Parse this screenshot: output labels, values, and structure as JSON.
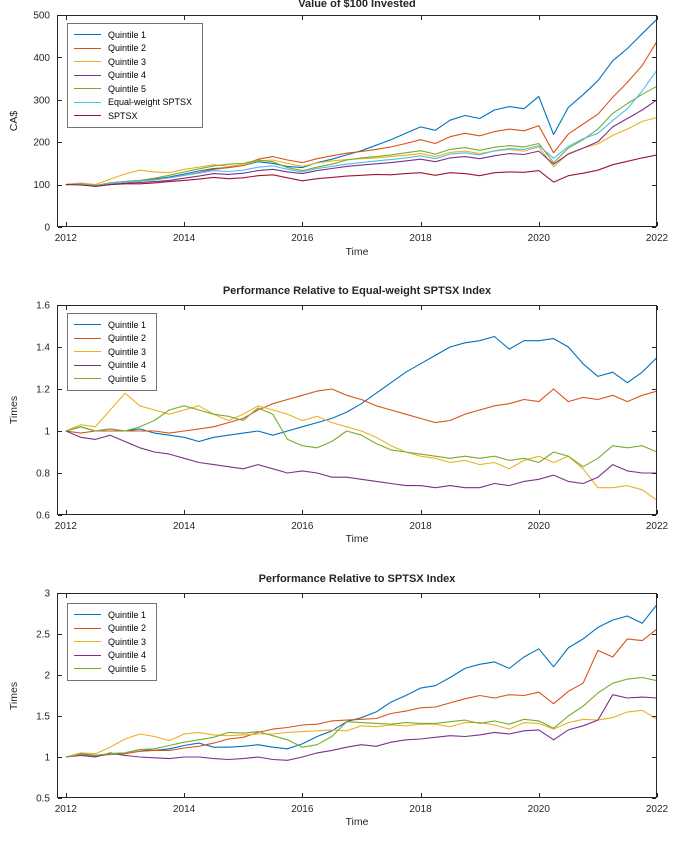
{
  "figure": {
    "background": "#ffffff"
  },
  "chart_data": [
    {
      "type": "line",
      "title": "Value of $100 Invested",
      "xlabel": "Time",
      "ylabel": "CA$",
      "xlim": [
        2011.85,
        2022
      ],
      "ylim": [
        0,
        500
      ],
      "xticks": [
        2012,
        2014,
        2016,
        2018,
        2020,
        2022
      ],
      "yticks": [
        0,
        100,
        200,
        300,
        400,
        500
      ],
      "grid": false,
      "legend_position": "top-left",
      "x": [
        2012,
        2012.25,
        2012.5,
        2012.75,
        2013,
        2013.25,
        2013.5,
        2013.75,
        2014,
        2014.25,
        2014.5,
        2014.75,
        2015,
        2015.25,
        2015.5,
        2015.75,
        2016,
        2016.25,
        2016.5,
        2016.75,
        2017,
        2017.25,
        2017.5,
        2017.75,
        2018,
        2018.25,
        2018.5,
        2018.75,
        2019,
        2019.25,
        2019.5,
        2019.75,
        2020,
        2020.25,
        2020.5,
        2020.75,
        2021,
        2021.25,
        2021.5,
        2021.75,
        2022
      ],
      "series": [
        {
          "name": "Quintile 1",
          "color": "#0072BD",
          "values": [
            100,
            103,
            97,
            104,
            107,
            110,
            113,
            118,
            125,
            132,
            138,
            140,
            145,
            154,
            150,
            143,
            140,
            152,
            160,
            170,
            180,
            193,
            206,
            221,
            236,
            228,
            252,
            263,
            256,
            276,
            284,
            279,
            308,
            218,
            282,
            312,
            345,
            392,
            421,
            456,
            490
          ]
        },
        {
          "name": "Quintile 2",
          "color": "#D95319",
          "values": [
            100,
            102,
            97,
            103,
            106,
            108,
            112,
            116,
            122,
            128,
            136,
            140,
            145,
            160,
            166,
            158,
            152,
            161,
            168,
            174,
            178,
            183,
            189,
            197,
            206,
            197,
            213,
            221,
            215,
            225,
            231,
            227,
            239,
            175,
            219,
            243,
            266,
            306,
            341,
            381,
            438
          ]
        },
        {
          "name": "Quintile 3",
          "color": "#EDB120",
          "values": [
            100,
            104,
            100,
            113,
            125,
            134,
            130,
            128,
            136,
            141,
            147,
            143,
            147,
            156,
            158,
            150,
            143,
            151,
            156,
            159,
            161,
            163,
            166,
            169,
            173,
            166,
            176,
            179,
            173,
            179,
            183,
            179,
            189,
            142,
            173,
            186,
            196,
            216,
            231,
            249,
            258
          ]
        },
        {
          "name": "Quintile 4",
          "color": "#7E2F8E",
          "values": [
            100,
            101,
            96,
            100,
            103,
            105,
            107,
            110,
            115,
            120,
            126,
            124,
            127,
            133,
            136,
            130,
            126,
            133,
            138,
            143,
            146,
            149,
            152,
            156,
            160,
            154,
            163,
            166,
            161,
            168,
            173,
            171,
            179,
            148,
            172,
            186,
            201,
            236,
            256,
            276,
            300
          ]
        },
        {
          "name": "Quintile 5",
          "color": "#77AC30",
          "values": [
            100,
            102,
            98,
            104,
            107,
            110,
            115,
            122,
            130,
            137,
            144,
            148,
            150,
            158,
            154,
            140,
            133,
            141,
            148,
            158,
            163,
            166,
            170,
            175,
            180,
            172,
            183,
            187,
            181,
            188,
            192,
            189,
            197,
            152,
            186,
            206,
            231,
            268,
            291,
            313,
            332
          ]
        },
        {
          "name": "Equal-weight SPTSX",
          "color": "#4DBEEE",
          "values": [
            100,
            101,
            97,
            103,
            106,
            108,
            111,
            116,
            122,
            127,
            133,
            131,
            134,
            141,
            144,
            136,
            130,
            138,
            143,
            148,
            152,
            156,
            159,
            163,
            168,
            161,
            172,
            175,
            170,
            180,
            185,
            183,
            192,
            162,
            190,
            208,
            221,
            251,
            279,
            321,
            370
          ]
        },
        {
          "name": "SPTSX",
          "color": "#A2142F",
          "values": [
            100,
            99,
            96,
            100,
            102,
            102,
            104,
            107,
            110,
            113,
            117,
            114,
            116,
            121,
            123,
            116,
            109,
            114,
            117,
            120,
            122,
            124,
            123,
            126,
            128,
            122,
            128,
            126,
            121,
            128,
            130,
            129,
            133,
            106,
            121,
            127,
            134,
            147,
            155,
            163,
            170
          ]
        }
      ]
    },
    {
      "type": "line",
      "title": "Performance Relative to Equal-weight SPTSX Index",
      "xlabel": "Time",
      "ylabel": "Times",
      "xlim": [
        2011.85,
        2022
      ],
      "ylim": [
        0.6,
        1.6
      ],
      "xticks": [
        2012,
        2014,
        2016,
        2018,
        2020,
        2022
      ],
      "yticks": [
        0.6,
        0.8,
        1,
        1.2,
        1.4,
        1.6
      ],
      "grid": false,
      "legend_position": "top-left",
      "x": [
        2012,
        2012.25,
        2012.5,
        2012.75,
        2013,
        2013.25,
        2013.5,
        2013.75,
        2014,
        2014.25,
        2014.5,
        2014.75,
        2015,
        2015.25,
        2015.5,
        2015.75,
        2016,
        2016.25,
        2016.5,
        2016.75,
        2017,
        2017.25,
        2017.5,
        2017.75,
        2018,
        2018.25,
        2018.5,
        2018.75,
        2019,
        2019.25,
        2019.5,
        2019.75,
        2020,
        2020.25,
        2020.5,
        2020.75,
        2021,
        2021.25,
        2021.5,
        2021.75,
        2022
      ],
      "series": [
        {
          "name": "Quintile 1",
          "color": "#0072BD",
          "values": [
            1,
            1.02,
            1,
            1.01,
            1,
            1.01,
            0.99,
            0.98,
            0.97,
            0.95,
            0.97,
            0.98,
            0.99,
            1,
            0.98,
            1,
            1.02,
            1.04,
            1.06,
            1.09,
            1.13,
            1.18,
            1.23,
            1.28,
            1.32,
            1.36,
            1.4,
            1.42,
            1.43,
            1.45,
            1.39,
            1.43,
            1.43,
            1.44,
            1.4,
            1.32,
            1.26,
            1.28,
            1.23,
            1.28,
            1.35
          ]
        },
        {
          "name": "Quintile 2",
          "color": "#D95319",
          "values": [
            1,
            0.99,
            1,
            1,
            1,
            1,
            1,
            0.99,
            1,
            1.01,
            1.02,
            1.04,
            1.06,
            1.1,
            1.13,
            1.15,
            1.17,
            1.19,
            1.2,
            1.17,
            1.15,
            1.12,
            1.1,
            1.08,
            1.06,
            1.04,
            1.05,
            1.08,
            1.1,
            1.12,
            1.13,
            1.15,
            1.14,
            1.2,
            1.14,
            1.16,
            1.15,
            1.17,
            1.14,
            1.17,
            1.19
          ]
        },
        {
          "name": "Quintile 3",
          "color": "#EDB120",
          "values": [
            1,
            1.03,
            1.02,
            1.1,
            1.18,
            1.12,
            1.1,
            1.08,
            1.1,
            1.12,
            1.08,
            1.05,
            1.08,
            1.12,
            1.1,
            1.08,
            1.05,
            1.07,
            1.04,
            1.02,
            1,
            0.97,
            0.93,
            0.9,
            0.88,
            0.87,
            0.85,
            0.86,
            0.84,
            0.85,
            0.82,
            0.86,
            0.88,
            0.85,
            0.88,
            0.82,
            0.73,
            0.73,
            0.74,
            0.72,
            0.67
          ]
        },
        {
          "name": "Quintile 4",
          "color": "#7E2F8E",
          "values": [
            1,
            0.97,
            0.96,
            0.98,
            0.95,
            0.92,
            0.9,
            0.89,
            0.87,
            0.85,
            0.84,
            0.83,
            0.82,
            0.84,
            0.82,
            0.8,
            0.81,
            0.8,
            0.78,
            0.78,
            0.77,
            0.76,
            0.75,
            0.74,
            0.74,
            0.73,
            0.74,
            0.73,
            0.73,
            0.75,
            0.74,
            0.76,
            0.77,
            0.79,
            0.76,
            0.75,
            0.78,
            0.84,
            0.81,
            0.8,
            0.8
          ]
        },
        {
          "name": "Quintile 5",
          "color": "#77AC30",
          "values": [
            1,
            1.02,
            1,
            1.01,
            1,
            1.02,
            1.05,
            1.1,
            1.12,
            1.1,
            1.08,
            1.07,
            1.05,
            1.11,
            1.08,
            0.96,
            0.93,
            0.92,
            0.95,
            1,
            0.98,
            0.94,
            0.91,
            0.9,
            0.89,
            0.88,
            0.87,
            0.88,
            0.87,
            0.88,
            0.86,
            0.87,
            0.85,
            0.9,
            0.88,
            0.83,
            0.87,
            0.93,
            0.92,
            0.93,
            0.9
          ]
        }
      ]
    },
    {
      "type": "line",
      "title": "Performance Relative to SPTSX Index",
      "xlabel": "Time",
      "ylabel": "Times",
      "xlim": [
        2011.85,
        2022
      ],
      "ylim": [
        0.5,
        3
      ],
      "xticks": [
        2012,
        2014,
        2016,
        2018,
        2020,
        2022
      ],
      "yticks": [
        0.5,
        1,
        1.5,
        2,
        2.5,
        3
      ],
      "grid": false,
      "legend_position": "top-left",
      "x": [
        2012,
        2012.25,
        2012.5,
        2012.75,
        2013,
        2013.25,
        2013.5,
        2013.75,
        2014,
        2014.25,
        2014.5,
        2014.75,
        2015,
        2015.25,
        2015.5,
        2015.75,
        2016,
        2016.25,
        2016.5,
        2016.75,
        2017,
        2017.25,
        2017.5,
        2017.75,
        2018,
        2018.25,
        2018.5,
        2018.75,
        2019,
        2019.25,
        2019.5,
        2019.75,
        2020,
        2020.25,
        2020.5,
        2020.75,
        2021,
        2021.25,
        2021.5,
        2021.75,
        2022
      ],
      "series": [
        {
          "name": "Quintile 1",
          "color": "#0072BD",
          "values": [
            1,
            1.04,
            1.02,
            1.04,
            1.05,
            1.09,
            1.08,
            1.1,
            1.14,
            1.17,
            1.12,
            1.12,
            1.13,
            1.15,
            1.12,
            1.1,
            1.16,
            1.25,
            1.32,
            1.43,
            1.48,
            1.55,
            1.67,
            1.75,
            1.84,
            1.87,
            1.97,
            2.08,
            2.13,
            2.16,
            2.08,
            2.22,
            2.32,
            2.1,
            2.33,
            2.44,
            2.58,
            2.67,
            2.72,
            2.63,
            2.86
          ]
        },
        {
          "name": "Quintile 2",
          "color": "#D95319",
          "values": [
            1,
            1.03,
            1.01,
            1.03,
            1.04,
            1.07,
            1.08,
            1.08,
            1.11,
            1.13,
            1.17,
            1.22,
            1.24,
            1.3,
            1.34,
            1.36,
            1.39,
            1.4,
            1.44,
            1.45,
            1.46,
            1.47,
            1.53,
            1.56,
            1.6,
            1.61,
            1.66,
            1.71,
            1.75,
            1.72,
            1.76,
            1.75,
            1.79,
            1.65,
            1.8,
            1.9,
            2.3,
            2.22,
            2.44,
            2.42,
            2.56
          ]
        },
        {
          "name": "Quintile 3",
          "color": "#EDB120",
          "values": [
            1,
            1.05,
            1.04,
            1.12,
            1.22,
            1.28,
            1.25,
            1.2,
            1.28,
            1.3,
            1.27,
            1.26,
            1.27,
            1.28,
            1.28,
            1.3,
            1.31,
            1.32,
            1.33,
            1.32,
            1.38,
            1.37,
            1.39,
            1.38,
            1.4,
            1.4,
            1.37,
            1.42,
            1.42,
            1.39,
            1.34,
            1.42,
            1.41,
            1.34,
            1.42,
            1.46,
            1.45,
            1.48,
            1.55,
            1.57,
            1.46
          ]
        },
        {
          "name": "Quintile 4",
          "color": "#7E2F8E",
          "values": [
            1,
            1.02,
            1,
            1.05,
            1.02,
            1,
            0.99,
            0.98,
            1,
            1,
            0.98,
            0.97,
            0.98,
            1,
            0.97,
            0.96,
            1,
            1.05,
            1.08,
            1.12,
            1.15,
            1.13,
            1.18,
            1.21,
            1.22,
            1.24,
            1.26,
            1.25,
            1.27,
            1.3,
            1.28,
            1.32,
            1.33,
            1.21,
            1.33,
            1.38,
            1.45,
            1.76,
            1.72,
            1.73,
            1.72
          ]
        },
        {
          "name": "Quintile 5",
          "color": "#77AC30",
          "values": [
            1,
            1.03,
            1.02,
            1.04,
            1.05,
            1.09,
            1.1,
            1.14,
            1.18,
            1.21,
            1.24,
            1.3,
            1.29,
            1.31,
            1.26,
            1.21,
            1.12,
            1.15,
            1.25,
            1.43,
            1.42,
            1.41,
            1.4,
            1.42,
            1.41,
            1.41,
            1.43,
            1.45,
            1.41,
            1.44,
            1.4,
            1.46,
            1.44,
            1.35,
            1.5,
            1.62,
            1.78,
            1.9,
            1.95,
            1.97,
            1.93
          ]
        }
      ]
    }
  ]
}
